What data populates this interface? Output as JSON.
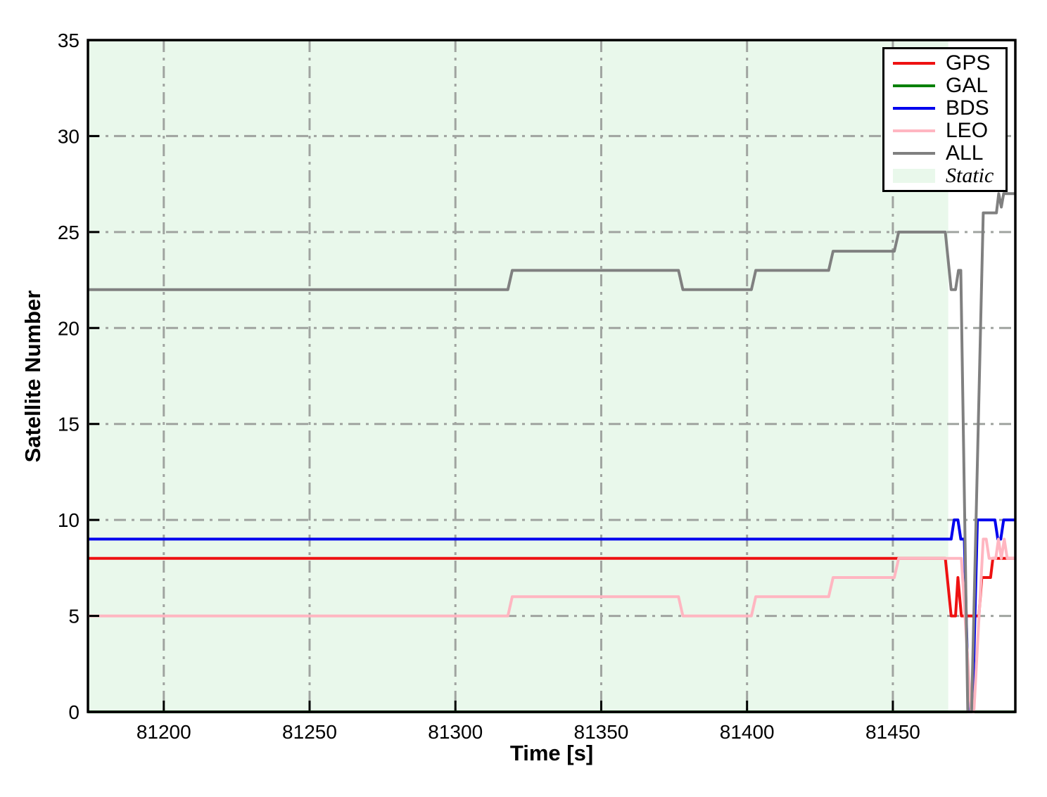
{
  "chart_data": {
    "type": "line",
    "title": "",
    "xlabel": "Time [s]",
    "ylabel": "Satellite Number",
    "xlim": [
      81174,
      81492
    ],
    "ylim": [
      0,
      35
    ],
    "xticks": [
      81200,
      81250,
      81300,
      81350,
      81400,
      81450
    ],
    "yticks": [
      0,
      5,
      10,
      15,
      20,
      25,
      30,
      35
    ],
    "grid": {
      "style": "dash-dot",
      "color": "#a0a4a0",
      "width": 3
    },
    "static_region": {
      "label": "Static",
      "x_start": 81174,
      "x_end": 81469,
      "color": "#e9f8eb"
    },
    "series": [
      {
        "name": "GPS",
        "color": "#ee1111",
        "width": 4,
        "points": [
          [
            81174,
            8
          ],
          [
            81468,
            8
          ],
          [
            81470,
            5
          ],
          [
            81471.5,
            5
          ],
          [
            81472.3,
            7
          ],
          [
            81473.5,
            5
          ],
          [
            81479.5,
            5
          ],
          [
            81480.5,
            7
          ],
          [
            81483.5,
            7
          ],
          [
            81484.3,
            8
          ],
          [
            81492,
            8
          ]
        ]
      },
      {
        "name": "GAL",
        "color": "#008000",
        "width": 4,
        "points": [
          [
            81174,
            0
          ],
          [
            81492,
            0
          ]
        ]
      },
      {
        "name": "BDS",
        "color": "#0000ee",
        "width": 4,
        "points": [
          [
            81174,
            9
          ],
          [
            81470,
            9
          ],
          [
            81471,
            10
          ],
          [
            81472.3,
            10
          ],
          [
            81473.3,
            9
          ],
          [
            81474.5,
            9
          ],
          [
            81476,
            0
          ],
          [
            81477.3,
            0
          ],
          [
            81479,
            10
          ],
          [
            81485,
            10
          ],
          [
            81486,
            9
          ],
          [
            81487,
            9
          ],
          [
            81488,
            10
          ],
          [
            81492,
            10
          ]
        ]
      },
      {
        "name": "LEO",
        "color": "#ffb6c1",
        "width": 4,
        "points": [
          [
            81174,
            5
          ],
          [
            81318,
            5
          ],
          [
            81319.5,
            6
          ],
          [
            81376.5,
            6
          ],
          [
            81378,
            5
          ],
          [
            81401.5,
            5
          ],
          [
            81403,
            6
          ],
          [
            81428,
            6
          ],
          [
            81429.5,
            7
          ],
          [
            81450.5,
            7
          ],
          [
            81452,
            8
          ],
          [
            81473.5,
            8
          ],
          [
            81476.8,
            0
          ],
          [
            81477.8,
            0
          ],
          [
            81481,
            9
          ],
          [
            81482,
            9
          ],
          [
            81483,
            8
          ],
          [
            81485.3,
            8
          ],
          [
            81486.2,
            9
          ],
          [
            81487.2,
            8
          ],
          [
            81488.2,
            9
          ],
          [
            81489.2,
            8
          ],
          [
            81492,
            8
          ]
        ]
      },
      {
        "name": "ALL",
        "color": "#808080",
        "width": 4,
        "points": [
          [
            81174,
            22
          ],
          [
            81318,
            22
          ],
          [
            81319.5,
            23
          ],
          [
            81376.5,
            23
          ],
          [
            81378,
            22
          ],
          [
            81401.5,
            22
          ],
          [
            81403,
            23
          ],
          [
            81428,
            23
          ],
          [
            81429.5,
            24
          ],
          [
            81450.5,
            24
          ],
          [
            81452,
            25
          ],
          [
            81468,
            25
          ],
          [
            81470,
            22
          ],
          [
            81471.5,
            22
          ],
          [
            81472.5,
            23
          ],
          [
            81473.3,
            23
          ],
          [
            81475.7,
            0
          ],
          [
            81477,
            0
          ],
          [
            81481,
            26
          ],
          [
            81485.5,
            26
          ],
          [
            81486.3,
            27
          ],
          [
            81487.2,
            26.3
          ],
          [
            81488,
            27
          ],
          [
            81492,
            27
          ]
        ]
      }
    ],
    "legend": {
      "position": "top-right",
      "entries": [
        "GPS",
        "GAL",
        "BDS",
        "LEO",
        "ALL",
        "Static"
      ]
    }
  }
}
